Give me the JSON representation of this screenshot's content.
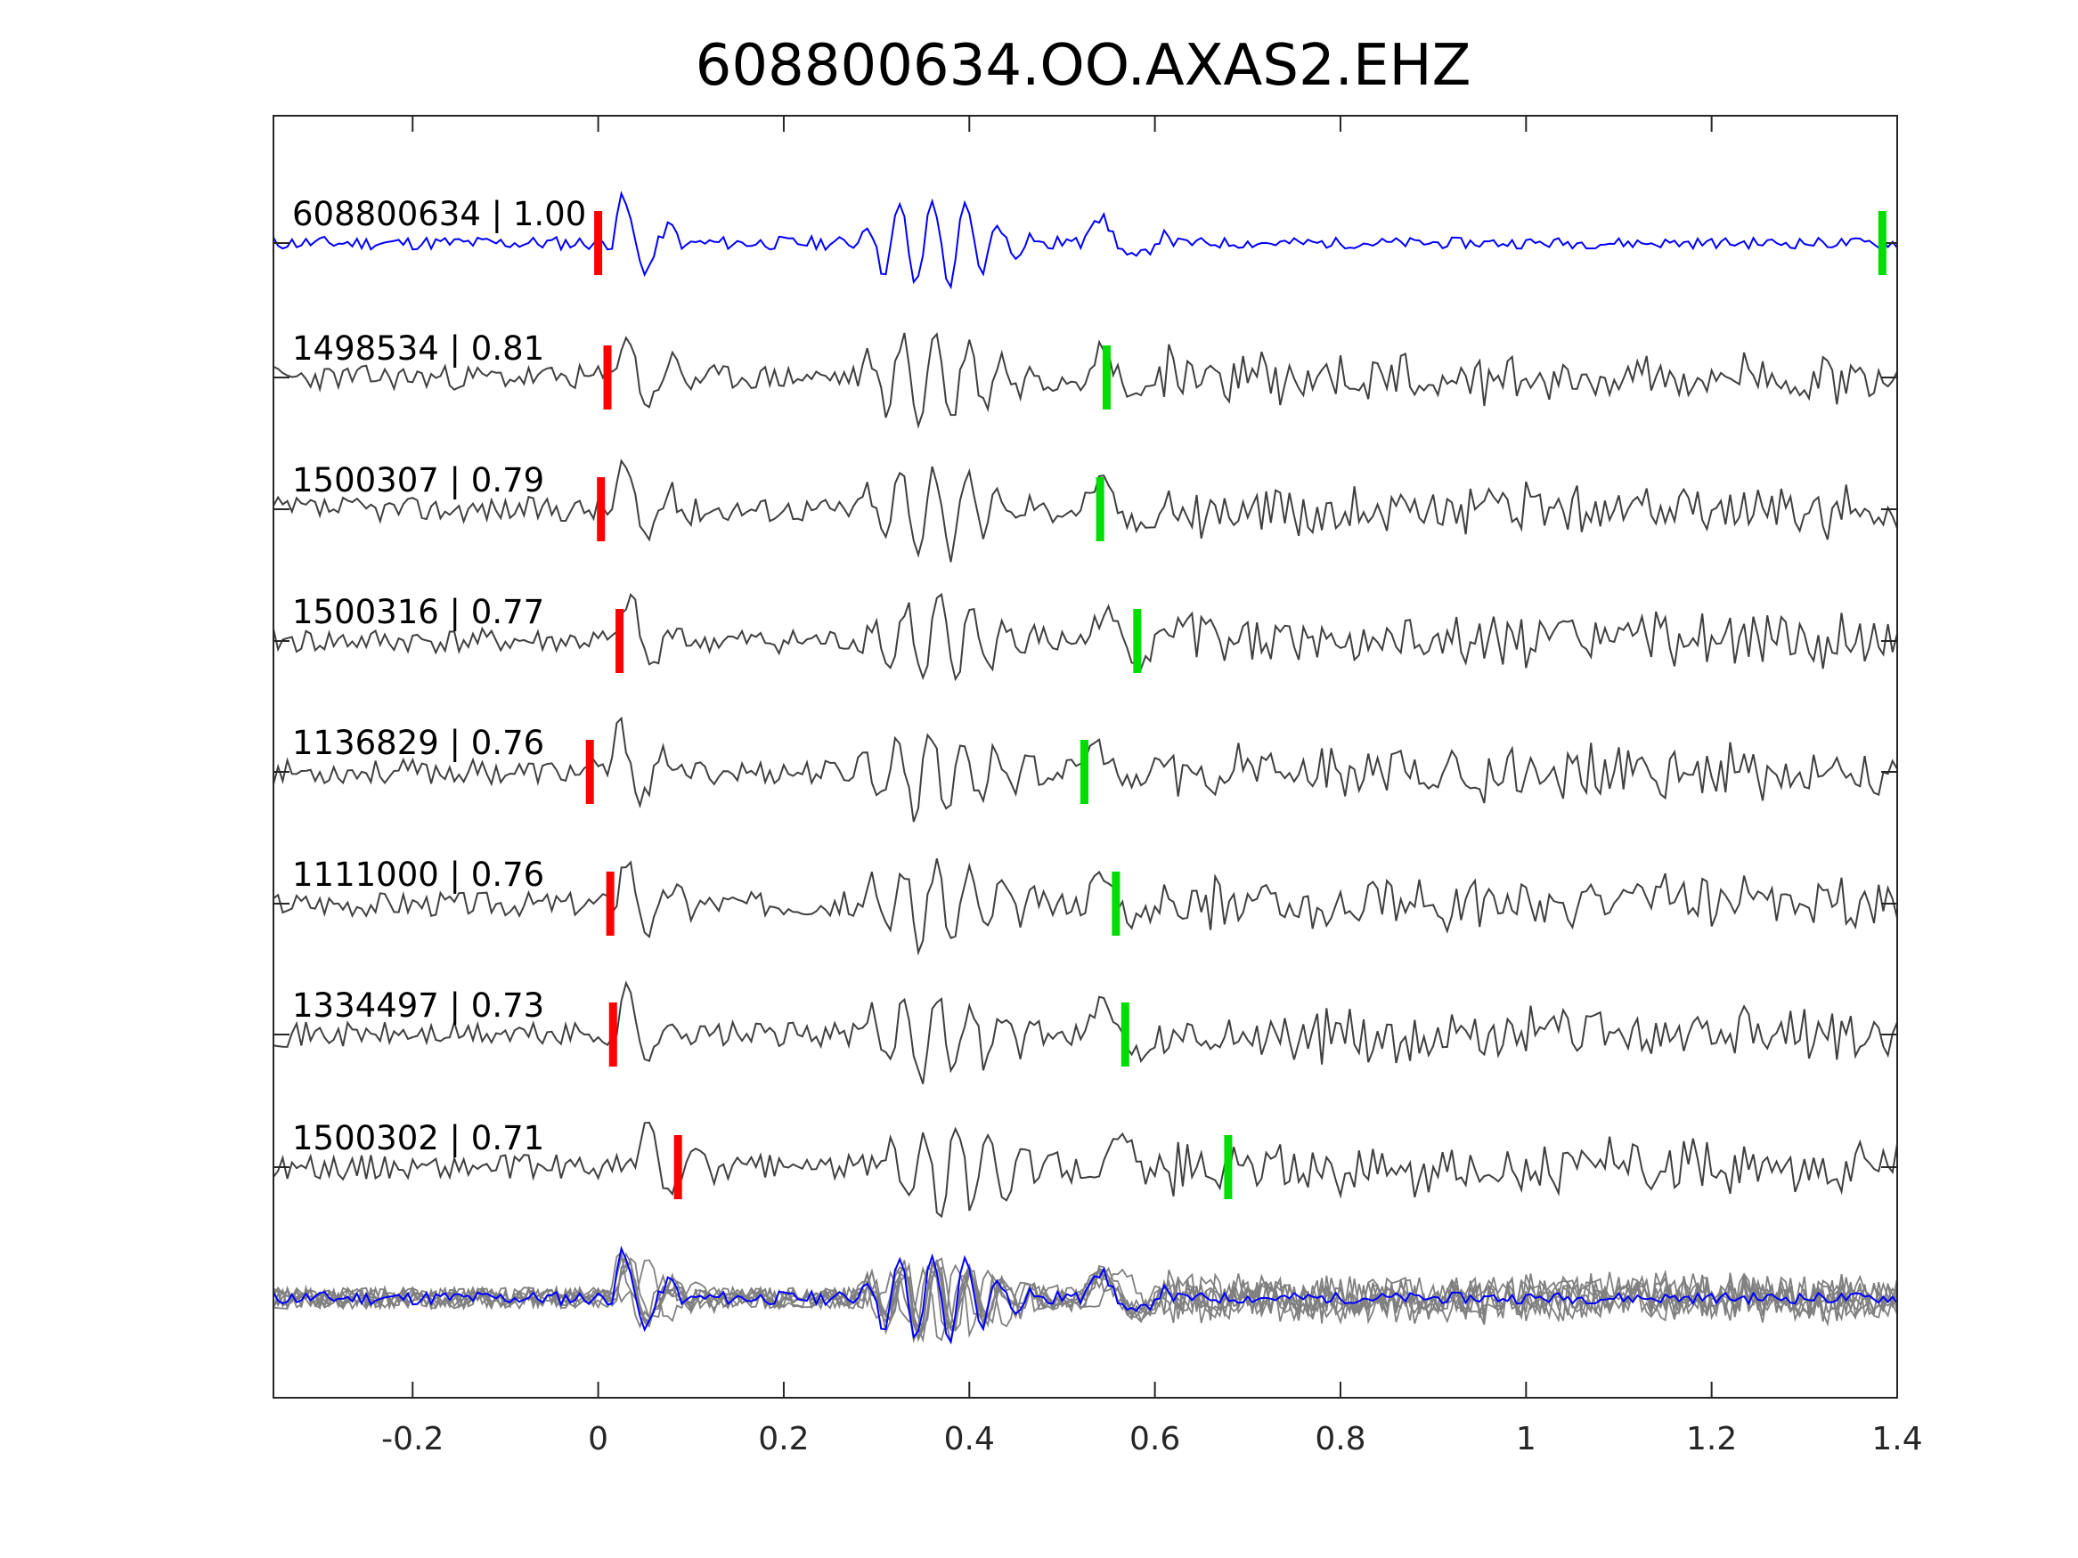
{
  "chart_data": {
    "type": "line",
    "title": "608800634.OO.AXAS2.EHZ",
    "xlabel": "",
    "ylabel": "",
    "xlim": [
      -0.35,
      1.4
    ],
    "xticks": [
      -0.2,
      0,
      0.2,
      0.4,
      0.6,
      0.8,
      1,
      1.2,
      1.4
    ],
    "xtick_labels": [
      "-0.2",
      "0",
      "0.2",
      "0.4",
      "0.6",
      "0.8",
      "1",
      "1.2",
      "1.4"
    ],
    "grid": false,
    "colors": {
      "template": "#0000ff",
      "trace": "#404040",
      "stack": "#808080",
      "p_pick": "#ff0000",
      "s_pick": "#00dd00",
      "axis": "#262626"
    },
    "traces": [
      {
        "label": "608800634 | 1.00",
        "id": "608800634",
        "cc": 1.0,
        "p_pick": 0.0,
        "s_pick": 1.384,
        "seed": 11,
        "template": true
      },
      {
        "label": "1498534 | 0.81",
        "id": "1498534",
        "cc": 0.81,
        "p_pick": 0.01,
        "s_pick": 0.548,
        "seed": 23
      },
      {
        "label": "1500307 | 0.79",
        "id": "1500307",
        "cc": 0.79,
        "p_pick": 0.003,
        "s_pick": 0.541,
        "seed": 37
      },
      {
        "label": "1500316 | 0.77",
        "id": "1500316",
        "cc": 0.77,
        "p_pick": 0.023,
        "s_pick": 0.581,
        "seed": 41
      },
      {
        "label": "1136829 | 0.76",
        "id": "1136829",
        "cc": 0.76,
        "p_pick": -0.009,
        "s_pick": 0.524,
        "seed": 53
      },
      {
        "label": "1111000 | 0.76",
        "id": "1111000",
        "cc": 0.76,
        "p_pick": 0.013,
        "s_pick": 0.558,
        "seed": 67
      },
      {
        "label": "1334497 | 0.73",
        "id": "1334497",
        "cc": 0.73,
        "p_pick": 0.016,
        "s_pick": 0.568,
        "seed": 71
      },
      {
        "label": "1500302 | 0.71",
        "id": "1500302",
        "cc": 0.71,
        "p_pick": 0.086,
        "s_pick": 0.679,
        "seed": 89
      }
    ],
    "stack": {
      "description_series": "overlay of all traces with template on top"
    }
  }
}
